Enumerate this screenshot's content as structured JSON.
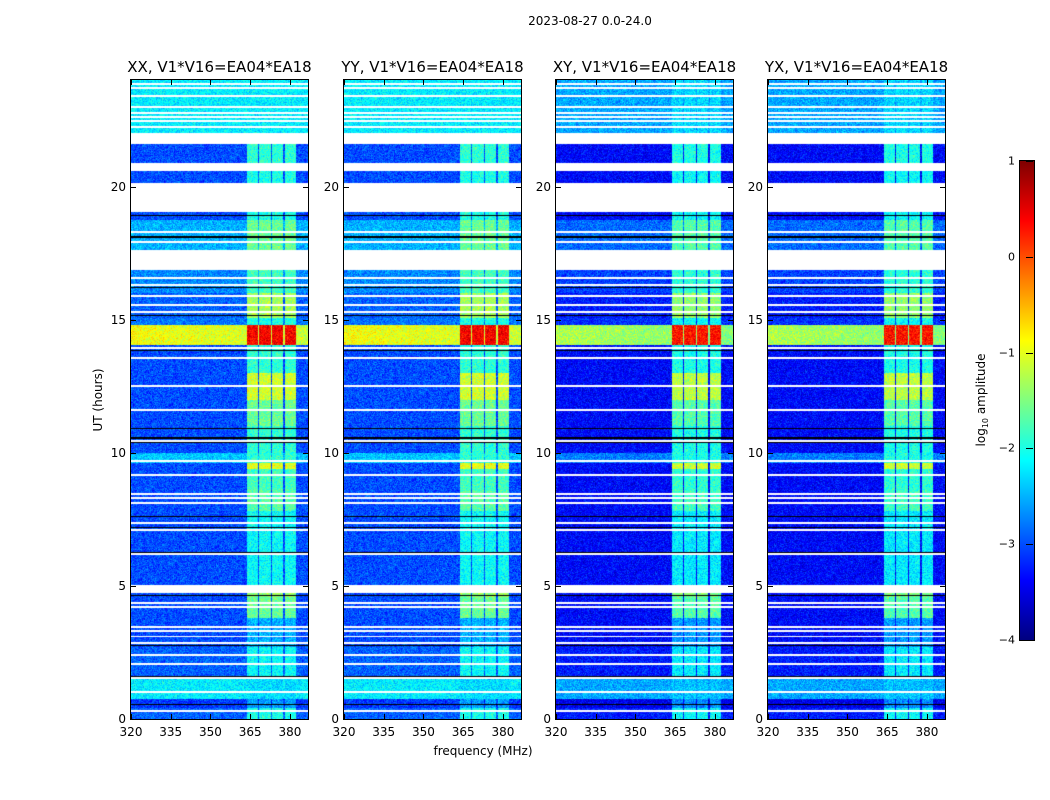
{
  "chart_data": {
    "type": "heatmap",
    "title": "2023-08-27 0.0-24.0",
    "xlabel": "frequency (MHz)",
    "ylabel": "UT (hours)",
    "xlim": [
      320,
      386.8
    ],
    "ylim": [
      0,
      24
    ],
    "xticks": [
      "320",
      "335",
      "350",
      "365",
      "380"
    ],
    "xtick_values": [
      320,
      335,
      350,
      365,
      380
    ],
    "yticks": [
      "0",
      "5",
      "10",
      "15",
      "20"
    ],
    "ytick_values": [
      0,
      5,
      10,
      15,
      20
    ],
    "colorbar": {
      "label_prefix": "log",
      "label_sub": "10",
      "label_suffix": " amplitude",
      "range": [
        -4,
        1
      ],
      "ticks": [
        "1",
        "0",
        "−1",
        "−2",
        "−3",
        "−4"
      ],
      "tick_values": [
        1,
        0,
        -1,
        -2,
        -3,
        -4
      ],
      "colormap": "jet"
    },
    "panels": [
      {
        "title": "XX, V1*V16=EA04*EA18",
        "bg_offset": 0
      },
      {
        "title": "YY, V1*V16=EA04*EA18",
        "bg_offset": 0
      },
      {
        "title": "XY, V1*V16=EA04*EA18",
        "bg_offset": -0.35
      },
      {
        "title": "YX, V1*V16=EA04*EA18",
        "bg_offset": -0.35
      }
    ],
    "rfi_bands_mhz": [
      [
        363.5,
        367.8
      ],
      [
        368.3,
        372.6
      ],
      [
        373.0,
        377.3
      ],
      [
        377.8,
        382.0
      ]
    ],
    "time_segments_note": "[start_hour, end_hour, background_log10_amp, rfi_log10_amp]; gaps are flagged (blank)",
    "time_segments": [
      [
        0,
        0.4,
        -2.9,
        -2.0
      ],
      [
        0.4,
        0.75,
        -3.1,
        -2.6
      ],
      [
        0.75,
        1.5,
        -2.2,
        -2.3
      ],
      [
        1.5,
        2.7,
        -2.9,
        -2.1
      ],
      [
        2.7,
        3.8,
        -3.0,
        -2.5
      ],
      [
        3.8,
        4.6,
        -3.0,
        -1.6
      ],
      [
        4.6,
        4.75,
        -3.0,
        -1.4
      ],
      [
        5.05,
        6.1,
        -3.0,
        -2.1
      ],
      [
        6.1,
        7.8,
        -3.0,
        -2.1
      ],
      [
        7.8,
        8.6,
        -3.0,
        -1.7
      ],
      [
        8.6,
        9.4,
        -3.0,
        -1.8
      ],
      [
        9.4,
        9.6,
        -3.0,
        -1.0
      ],
      [
        9.6,
        10.0,
        -2.4,
        -1.9
      ],
      [
        10.0,
        11.0,
        -3.0,
        -1.9
      ],
      [
        11.0,
        12.0,
        -3.0,
        -1.6
      ],
      [
        12.0,
        13.0,
        -3.0,
        -1.1
      ],
      [
        13.0,
        14.05,
        -3.0,
        -1.9
      ],
      [
        14.05,
        14.8,
        -0.9,
        0.4
      ],
      [
        14.8,
        15.05,
        -2.8,
        -2.0
      ],
      [
        15.05,
        16.0,
        -2.9,
        -1.3
      ],
      [
        16.0,
        16.85,
        -2.7,
        -1.8
      ],
      [
        17.6,
        18.75,
        -2.5,
        -1.6
      ],
      [
        18.75,
        19.05,
        -3.0,
        -2.0
      ],
      [
        20.15,
        20.6,
        -3.0,
        -2.0
      ],
      [
        20.9,
        21.6,
        -3.0,
        -1.9
      ],
      [
        22.0,
        24.0,
        -2.2,
        -2.2
      ]
    ],
    "flagged_lines_hours": [
      0.3,
      1.0,
      1.55,
      2.05,
      2.4,
      2.85,
      3.1,
      3.3,
      3.45,
      4.2,
      4.35,
      6.2,
      7.1,
      7.35,
      8.1,
      8.3,
      8.45,
      9.15,
      9.7,
      10.45,
      11.6,
      12.5,
      13.55,
      13.95,
      15.3,
      15.55,
      15.9,
      16.3,
      16.55,
      17.9,
      18.3,
      22.25,
      22.45,
      22.6,
      22.75,
      23.0,
      23.4,
      23.7,
      23.85
    ],
    "dark_lines_hours": [
      0.55,
      1.6,
      2.75,
      4.65,
      6.25,
      7.2,
      7.6,
      10.4,
      10.55,
      10.9,
      13.85,
      15.15,
      16.2,
      18.1,
      18.9
    ]
  }
}
